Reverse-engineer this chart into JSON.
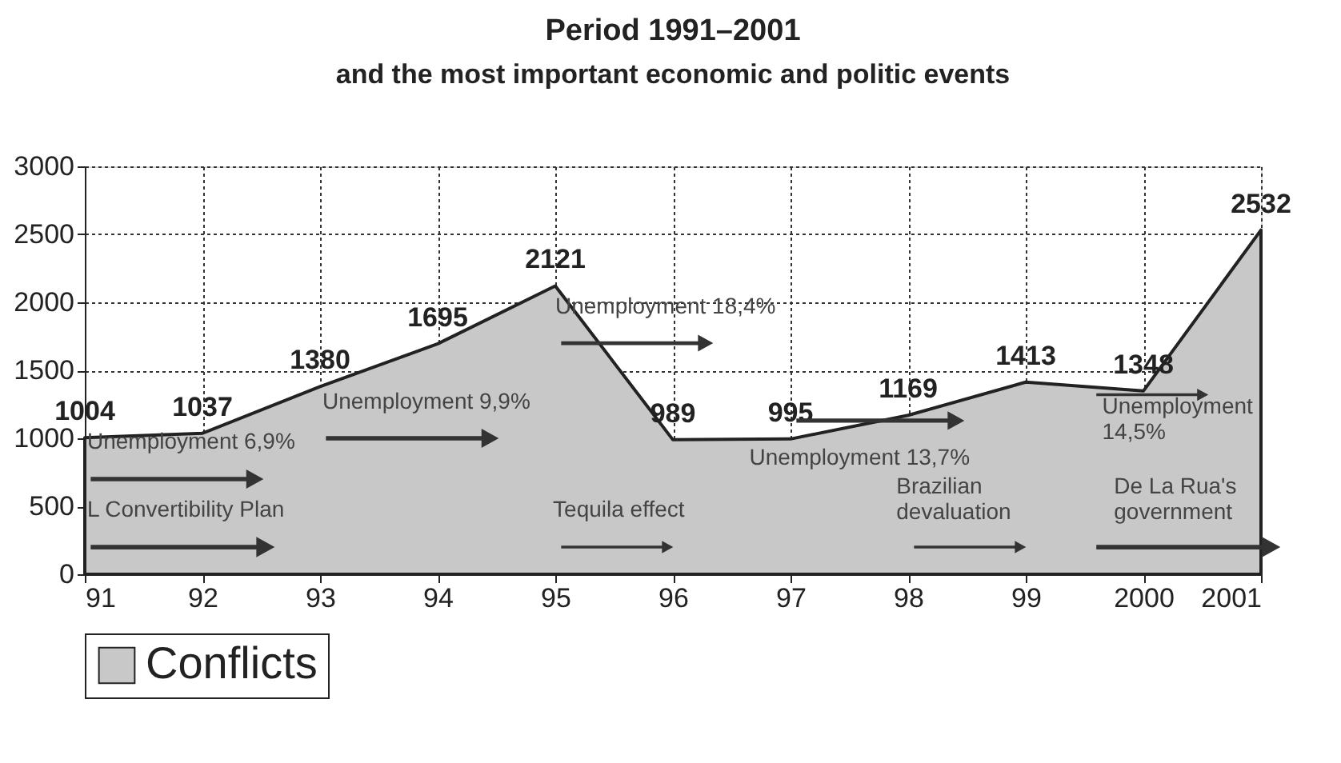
{
  "chart_data": {
    "type": "area",
    "title": "Period 1991–2001",
    "subtitle": "and the most important economic and politic events",
    "categories": [
      "91",
      "92",
      "93",
      "94",
      "95",
      "96",
      "97",
      "98",
      "99",
      "2000",
      "2001"
    ],
    "series": [
      {
        "name": "Conflicts",
        "color": "#c8c8c8",
        "values": [
          1004,
          1037,
          1380,
          1695,
          2121,
          989,
          995,
          1169,
          1413,
          1348,
          2532
        ]
      }
    ],
    "ylim": [
      0,
      3000
    ],
    "yticks": [
      0,
      500,
      1000,
      1500,
      2000,
      2500,
      3000
    ],
    "grid": true,
    "legend": "bottom",
    "data_labels": true,
    "annotations": [
      "L Convertibility Plan",
      "Unemployment 6,9%",
      "Unemployment 9,9%",
      "Unemployment 18,4%",
      "Tequila effect",
      "Unemployment 13,7%",
      "Brazilian\ndevaluation",
      "Unemployment\n14,5%",
      "De La Rua's\ngovernment"
    ]
  }
}
